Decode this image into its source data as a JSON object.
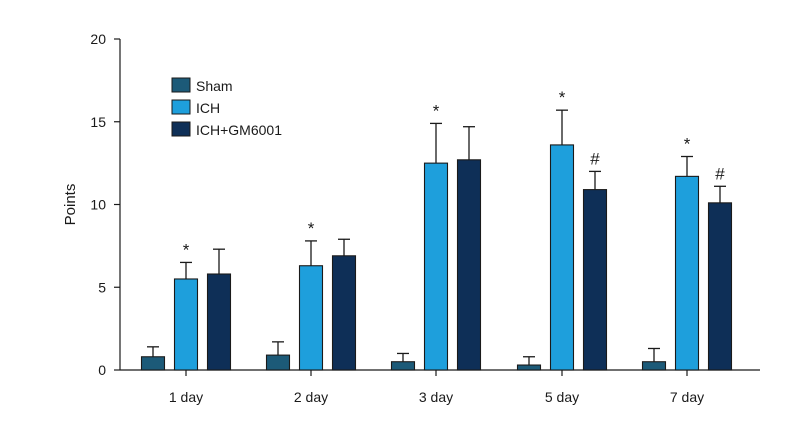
{
  "chart_data": {
    "type": "bar",
    "title": "",
    "xlabel": "",
    "ylabel": "Points",
    "ylim": [
      0,
      20
    ],
    "yticks": [
      0,
      5,
      10,
      15,
      20
    ],
    "categories": [
      "1 day",
      "2 day",
      "3 day",
      "5 day",
      "7 day"
    ],
    "legend_position": "top-left",
    "grid": false,
    "series": [
      {
        "name": "Sham",
        "color": "#1c5a78",
        "values": [
          0.8,
          0.9,
          0.5,
          0.3,
          0.5
        ],
        "errors": [
          0.6,
          0.8,
          0.5,
          0.5,
          0.8
        ],
        "marks": [
          "",
          "",
          "",
          "",
          ""
        ]
      },
      {
        "name": "ICH",
        "color": "#1e9fdc",
        "values": [
          5.5,
          6.3,
          12.5,
          13.6,
          11.7
        ],
        "errors": [
          1.0,
          1.5,
          2.4,
          2.1,
          1.2
        ],
        "marks": [
          "*",
          "*",
          "*",
          "*",
          "*"
        ]
      },
      {
        "name": "ICH+GM6001",
        "color": "#0e2f57",
        "values": [
          5.8,
          6.9,
          12.7,
          10.9,
          10.1
        ],
        "errors": [
          1.5,
          1.0,
          2.0,
          1.1,
          1.0
        ],
        "marks": [
          "",
          "",
          "",
          "#",
          "#"
        ]
      }
    ]
  }
}
